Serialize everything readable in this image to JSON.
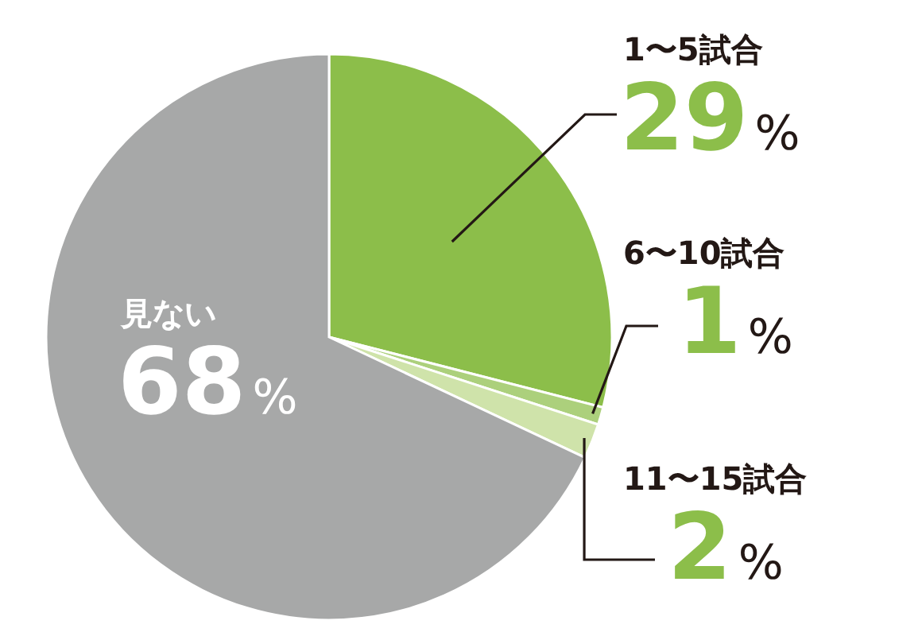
{
  "chart_data": {
    "type": "pie",
    "categories": [
      "1〜5試合",
      "6〜10試合",
      "11〜15試合",
      "見ない"
    ],
    "values": [
      29,
      1,
      2,
      68
    ],
    "colors": [
      "#8cbe4a",
      "#acd07c",
      "#cfe3aa",
      "#a7a8a8"
    ],
    "value_labels": [
      "29%",
      "1%",
      "2%",
      "68%"
    ]
  }
}
